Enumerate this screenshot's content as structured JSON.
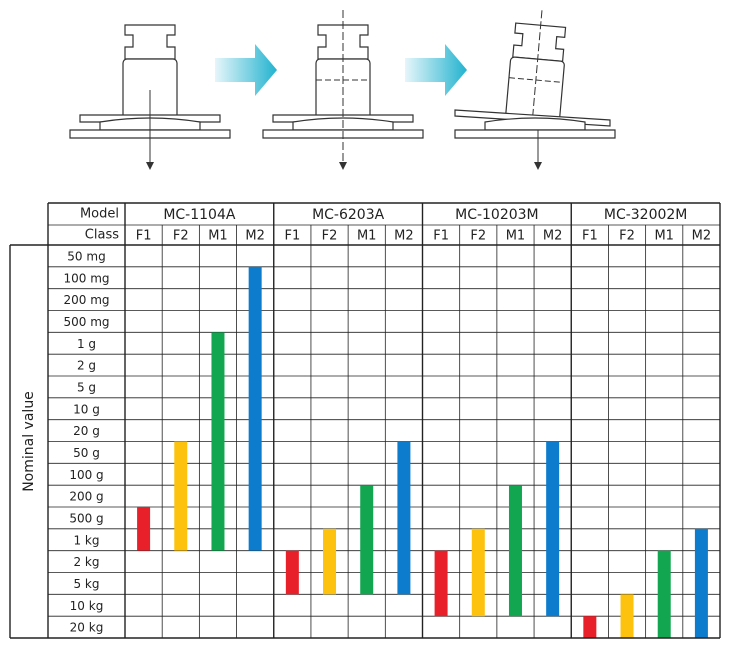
{
  "table": {
    "model_header": "Model",
    "class_header": "Class",
    "axis_label": "Nominal value",
    "nominal_values": [
      "50 mg",
      "100 mg",
      "200 mg",
      "500 mg",
      "1 g",
      "2 g",
      "5 g",
      "10 g",
      "20 g",
      "50 g",
      "100 g",
      "200 g",
      "500 g",
      "1 kg",
      "2 kg",
      "5 kg",
      "10 kg",
      "20 kg"
    ],
    "models": [
      {
        "name": "MC-1104A",
        "classes": [
          {
            "name": "F1",
            "color": "#e8202a",
            "from": "500 g",
            "to": "1 kg"
          },
          {
            "name": "F2",
            "color": "#fcc20e",
            "from": "50 g",
            "to": "1 kg"
          },
          {
            "name": "M1",
            "color": "#12a650",
            "from": "1 g",
            "to": "1 kg"
          },
          {
            "name": "M2",
            "color": "#0d7ccc",
            "from": "100 mg",
            "to": "1 kg"
          }
        ]
      },
      {
        "name": "MC-6203A",
        "classes": [
          {
            "name": "F1",
            "color": "#e8202a",
            "from": "2 kg",
            "to": "5 kg"
          },
          {
            "name": "F2",
            "color": "#fcc20e",
            "from": "1 kg",
            "to": "5 kg"
          },
          {
            "name": "M1",
            "color": "#12a650",
            "from": "200 g",
            "to": "5 kg"
          },
          {
            "name": "M2",
            "color": "#0d7ccc",
            "from": "50 g",
            "to": "5 kg"
          }
        ]
      },
      {
        "name": "MC-10203M",
        "classes": [
          {
            "name": "F1",
            "color": "#e8202a",
            "from": "2 kg",
            "to": "10 kg"
          },
          {
            "name": "F2",
            "color": "#fcc20e",
            "from": "1 kg",
            "to": "10 kg"
          },
          {
            "name": "M1",
            "color": "#12a650",
            "from": "200 g",
            "to": "10 kg"
          },
          {
            "name": "M2",
            "color": "#0d7ccc",
            "from": "50 g",
            "to": "10 kg"
          }
        ]
      },
      {
        "name": "MC-32002M",
        "classes": [
          {
            "name": "F1",
            "color": "#e8202a",
            "from": "20 kg",
            "to": "20 kg"
          },
          {
            "name": "F2",
            "color": "#fcc20e",
            "from": "10 kg",
            "to": "20 kg"
          },
          {
            "name": "M1",
            "color": "#12a650",
            "from": "2 kg",
            "to": "20 kg"
          },
          {
            "name": "M2",
            "color": "#0d7ccc",
            "from": "1 kg",
            "to": "20 kg"
          }
        ]
      }
    ]
  }
}
